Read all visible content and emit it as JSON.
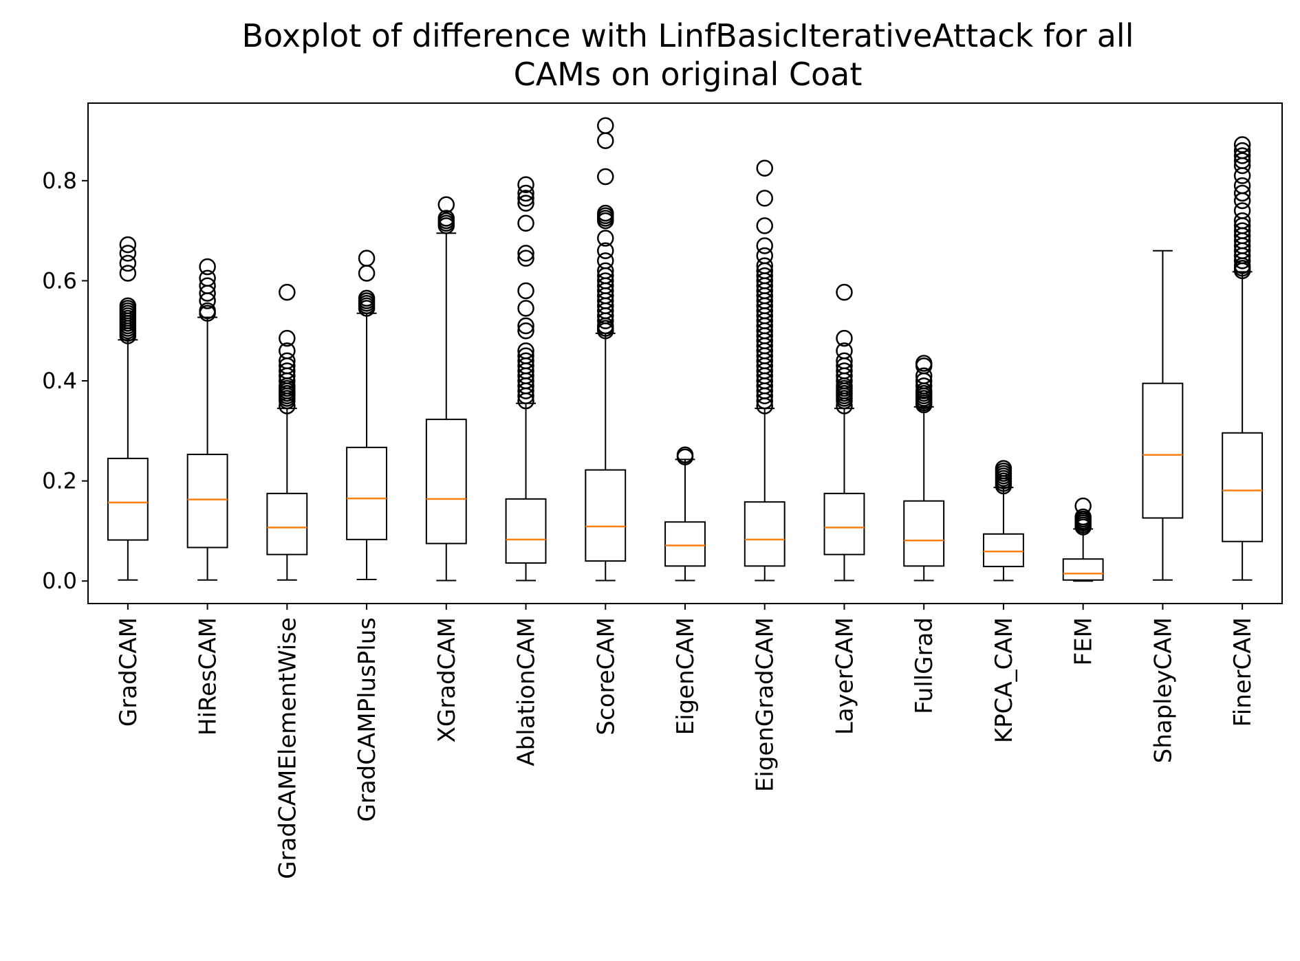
{
  "chart_data": {
    "type": "boxplot",
    "title_lines": [
      "Boxplot of difference with LinfBasicIterativeAttack for all",
      "CAMs on original Coat"
    ],
    "xlabel": "",
    "ylabel": "",
    "ylim": [
      -0.045,
      0.955
    ],
    "yticks": [
      0.0,
      0.2,
      0.4,
      0.6,
      0.8
    ],
    "ytick_labels": [
      "0.0",
      "0.2",
      "0.4",
      "0.6",
      "0.8"
    ],
    "grid": false,
    "colors": {
      "box": "#000000",
      "median": "#ff7f0e",
      "outlier": "#000000"
    },
    "categories": [
      "GradCAM",
      "HiResCAM",
      "GradCAMElementWise",
      "GradCAMPlusPlus",
      "XGradCAM",
      "AblationCAM",
      "ScoreCAM",
      "EigenCAM",
      "EigenGradCAM",
      "LayerCAM",
      "FullGrad",
      "KPCA_CAM",
      "FEM",
      "ShapleyCAM",
      "FinerCAM"
    ],
    "boxes": [
      {
        "whislo": 0.002,
        "q1": 0.082,
        "med": 0.157,
        "q3": 0.245,
        "whishi": 0.482,
        "fliers": [
          0.49,
          0.495,
          0.5,
          0.505,
          0.51,
          0.515,
          0.52,
          0.525,
          0.53,
          0.535,
          0.54,
          0.545,
          0.55,
          0.615,
          0.635,
          0.655,
          0.672
        ]
      },
      {
        "whislo": 0.002,
        "q1": 0.067,
        "med": 0.163,
        "q3": 0.253,
        "whishi": 0.527,
        "fliers": [
          0.535,
          0.54,
          0.56,
          0.575,
          0.59,
          0.605,
          0.628
        ]
      },
      {
        "whislo": 0.002,
        "q1": 0.053,
        "med": 0.107,
        "q3": 0.175,
        "whishi": 0.345,
        "fliers": [
          0.35,
          0.36,
          0.365,
          0.37,
          0.375,
          0.38,
          0.385,
          0.39,
          0.4,
          0.41,
          0.42,
          0.43,
          0.44,
          0.46,
          0.485,
          0.577
        ]
      },
      {
        "whislo": 0.003,
        "q1": 0.083,
        "med": 0.165,
        "q3": 0.267,
        "whishi": 0.535,
        "fliers": [
          0.545,
          0.55,
          0.555,
          0.56,
          0.565,
          0.615,
          0.645
        ]
      },
      {
        "whislo": 0.001,
        "q1": 0.075,
        "med": 0.164,
        "q3": 0.323,
        "whishi": 0.695,
        "fliers": [
          0.71,
          0.715,
          0.72,
          0.725,
          0.752
        ]
      },
      {
        "whislo": 0.001,
        "q1": 0.036,
        "med": 0.083,
        "q3": 0.164,
        "whishi": 0.355,
        "fliers": [
          0.36,
          0.37,
          0.38,
          0.39,
          0.4,
          0.41,
          0.42,
          0.43,
          0.44,
          0.45,
          0.46,
          0.5,
          0.51,
          0.545,
          0.58,
          0.645,
          0.655,
          0.715,
          0.755,
          0.765,
          0.775,
          0.792
        ]
      },
      {
        "whislo": 0.001,
        "q1": 0.04,
        "med": 0.109,
        "q3": 0.222,
        "whishi": 0.495,
        "fliers": [
          0.5,
          0.505,
          0.51,
          0.52,
          0.53,
          0.54,
          0.55,
          0.56,
          0.57,
          0.58,
          0.59,
          0.6,
          0.61,
          0.62,
          0.64,
          0.66,
          0.685,
          0.72,
          0.725,
          0.73,
          0.735,
          0.808,
          0.88,
          0.91
        ]
      },
      {
        "whislo": 0.001,
        "q1": 0.03,
        "med": 0.071,
        "q3": 0.118,
        "whishi": 0.243,
        "fliers": [
          0.248,
          0.252
        ]
      },
      {
        "whislo": 0.001,
        "q1": 0.03,
        "med": 0.083,
        "q3": 0.158,
        "whishi": 0.345,
        "fliers": [
          0.35,
          0.36,
          0.37,
          0.38,
          0.39,
          0.4,
          0.41,
          0.42,
          0.43,
          0.44,
          0.45,
          0.46,
          0.47,
          0.48,
          0.49,
          0.5,
          0.51,
          0.52,
          0.53,
          0.54,
          0.55,
          0.56,
          0.57,
          0.58,
          0.59,
          0.6,
          0.61,
          0.62,
          0.63,
          0.65,
          0.67,
          0.71,
          0.765,
          0.825
        ]
      },
      {
        "whislo": 0.001,
        "q1": 0.053,
        "med": 0.107,
        "q3": 0.175,
        "whishi": 0.345,
        "fliers": [
          0.35,
          0.36,
          0.365,
          0.37,
          0.375,
          0.38,
          0.385,
          0.39,
          0.4,
          0.41,
          0.42,
          0.43,
          0.44,
          0.46,
          0.485,
          0.577
        ]
      },
      {
        "whislo": 0.001,
        "q1": 0.03,
        "med": 0.081,
        "q3": 0.16,
        "whishi": 0.348,
        "fliers": [
          0.352,
          0.356,
          0.36,
          0.365,
          0.37,
          0.375,
          0.38,
          0.39,
          0.4,
          0.41,
          0.43,
          0.435
        ]
      },
      {
        "whislo": 0.001,
        "q1": 0.029,
        "med": 0.059,
        "q3": 0.094,
        "whishi": 0.187,
        "fliers": [
          0.19,
          0.195,
          0.2,
          0.205,
          0.21,
          0.215,
          0.22,
          0.225
        ]
      },
      {
        "whislo": 0.0,
        "q1": 0.002,
        "med": 0.015,
        "q3": 0.044,
        "whishi": 0.104,
        "fliers": [
          0.108,
          0.112,
          0.116,
          0.12,
          0.124,
          0.128,
          0.15
        ]
      },
      {
        "whislo": 0.002,
        "q1": 0.126,
        "med": 0.252,
        "q3": 0.395,
        "whishi": 0.66,
        "fliers": []
      },
      {
        "whislo": 0.002,
        "q1": 0.079,
        "med": 0.181,
        "q3": 0.296,
        "whishi": 0.618,
        "fliers": [
          0.62,
          0.625,
          0.63,
          0.64,
          0.65,
          0.66,
          0.67,
          0.68,
          0.69,
          0.7,
          0.71,
          0.72,
          0.74,
          0.76,
          0.775,
          0.79,
          0.81,
          0.83,
          0.84,
          0.85,
          0.86,
          0.872
        ]
      }
    ]
  }
}
